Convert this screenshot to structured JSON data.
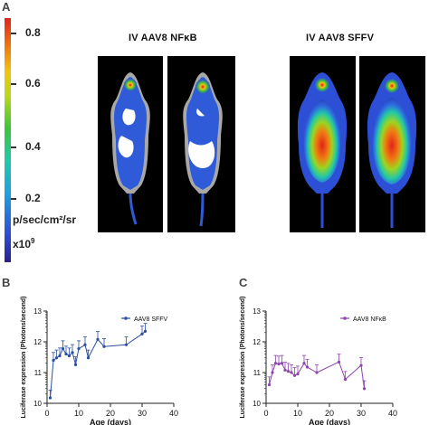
{
  "panels": {
    "a": "A",
    "b": "B",
    "c": "C"
  },
  "colorbar": {
    "ticks": [
      "0.8",
      "0.6",
      "0.4",
      "0.2"
    ],
    "unit": "p/sec/cm²/sr",
    "scale": "x10",
    "scale_exp": "9",
    "colors": [
      "#2a1f8f",
      "#2d4fd6",
      "#1f9fe0",
      "#22c9a6",
      "#3fc43a",
      "#b8d81e",
      "#f2c312",
      "#f07a12",
      "#e0241a"
    ]
  },
  "imaging": {
    "title_left": "IV AAV8 NFκB",
    "title_right": "IV AAV8 SFFV"
  },
  "chart_data": [
    {
      "type": "line",
      "panel": "B",
      "xlabel": "Age (days)",
      "ylabel": "Luciferase expression (Photons/second)",
      "xlim": [
        0,
        40
      ],
      "ylim_log10": [
        10,
        13
      ],
      "y_scale": "log",
      "xticks": [
        "0",
        "10",
        "20",
        "30",
        "40"
      ],
      "yticks": [
        "10",
        "11",
        "12",
        "13"
      ],
      "legend_position": "top-right",
      "series": [
        {
          "name": "AAV8 SFFV",
          "color": "#2b4fa0",
          "x": [
            1,
            2,
            3,
            4,
            5,
            6,
            7,
            8,
            9,
            10,
            12,
            13,
            16,
            18,
            25,
            30,
            31
          ],
          "y": [
            15000000000.0,
            250000000000.0,
            300000000000.0,
            350000000000.0,
            600000000000.0,
            400000000000.0,
            350000000000.0,
            450000000000.0,
            180000000000.0,
            600000000000.0,
            800000000000.0,
            300000000000.0,
            1200000000000.0,
            700000000000.0,
            800000000000.0,
            1800000000000.0,
            2200000000000.0
          ]
        }
      ]
    },
    {
      "type": "line",
      "panel": "C",
      "xlabel": "Age (days)",
      "ylabel": "Luciferase expression (Photons/second)",
      "xlim": [
        0,
        40
      ],
      "ylim_log10": [
        10,
        13
      ],
      "y_scale": "log",
      "xticks": [
        "0",
        "10",
        "20",
        "30",
        "40"
      ],
      "yticks": [
        "10",
        "11",
        "12",
        "13"
      ],
      "legend_position": "top-right",
      "series": [
        {
          "name": "AAV8 NFκB",
          "color": "#8e44ad",
          "x": [
            1,
            2,
            3,
            4,
            5,
            6,
            7,
            8,
            9,
            10,
            12,
            13,
            16,
            23,
            25,
            30,
            31
          ],
          "y": [
            40000000000.0,
            100000000000.0,
            200000000000.0,
            190000000000.0,
            200000000000.0,
            120000000000.0,
            110000000000.0,
            100000000000.0,
            80000000000.0,
            90000000000.0,
            200000000000.0,
            150000000000.0,
            100000000000.0,
            220000000000.0,
            60000000000.0,
            170000000000.0,
            30000000000.0
          ]
        }
      ]
    }
  ]
}
